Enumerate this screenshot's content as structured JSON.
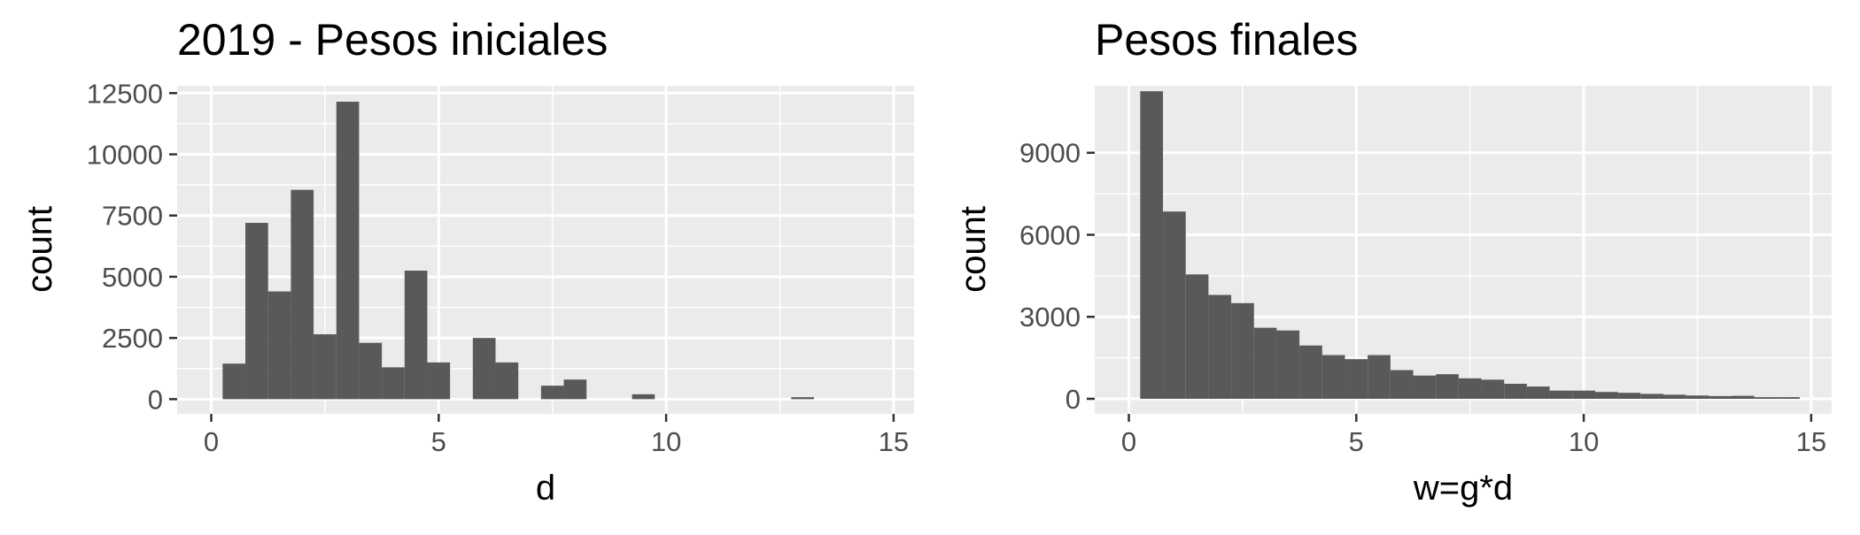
{
  "colors": {
    "panel_background": "#EBEBEB",
    "grid_major": "#FFFFFF",
    "grid_minor": "#F7F7F7",
    "bar_fill": "#595959",
    "tick_text": "#4D4D4D",
    "tick_mark": "#333333"
  },
  "chart_data": [
    {
      "type": "bar",
      "title": "2019 - Pesos iniciales",
      "xlabel": "d",
      "ylabel": "count",
      "xlim": [
        -0.75,
        15.45
      ],
      "ylim": [
        -600,
        12800
      ],
      "x_ticks": [
        0,
        5,
        10,
        15
      ],
      "y_ticks": [
        0,
        2500,
        5000,
        7500,
        10000,
        12500
      ],
      "x_tick_labels": [
        "0",
        "5",
        "10",
        "15"
      ],
      "y_tick_labels": [
        "0",
        "2500",
        "5000",
        "7500",
        "10000",
        "12500"
      ],
      "grid": true,
      "bins": [
        {
          "x0": 0.25,
          "x1": 0.75,
          "count": 1450
        },
        {
          "x0": 0.75,
          "x1": 1.25,
          "count": 7200
        },
        {
          "x0": 1.25,
          "x1": 1.75,
          "count": 4400
        },
        {
          "x0": 1.75,
          "x1": 2.25,
          "count": 8550
        },
        {
          "x0": 2.25,
          "x1": 2.75,
          "count": 2650
        },
        {
          "x0": 2.75,
          "x1": 3.25,
          "count": 12150
        },
        {
          "x0": 3.25,
          "x1": 3.75,
          "count": 2300
        },
        {
          "x0": 3.75,
          "x1": 4.25,
          "count": 1300
        },
        {
          "x0": 4.25,
          "x1": 4.75,
          "count": 5250
        },
        {
          "x0": 4.75,
          "x1": 5.25,
          "count": 1500
        },
        {
          "x0": 5.25,
          "x1": 5.75,
          "count": 0
        },
        {
          "x0": 5.75,
          "x1": 6.25,
          "count": 2500
        },
        {
          "x0": 6.25,
          "x1": 6.75,
          "count": 1500
        },
        {
          "x0": 6.75,
          "x1": 7.25,
          "count": 0
        },
        {
          "x0": 7.25,
          "x1": 7.75,
          "count": 550
        },
        {
          "x0": 7.75,
          "x1": 8.25,
          "count": 800
        },
        {
          "x0": 8.25,
          "x1": 8.75,
          "count": 0
        },
        {
          "x0": 8.75,
          "x1": 9.25,
          "count": 0
        },
        {
          "x0": 9.25,
          "x1": 9.75,
          "count": 200
        },
        {
          "x0": 9.75,
          "x1": 10.25,
          "count": 0
        },
        {
          "x0": 10.25,
          "x1": 10.75,
          "count": 0
        },
        {
          "x0": 10.75,
          "x1": 11.25,
          "count": 0
        },
        {
          "x0": 11.25,
          "x1": 11.75,
          "count": 0
        },
        {
          "x0": 11.75,
          "x1": 12.25,
          "count": 0
        },
        {
          "x0": 12.25,
          "x1": 12.75,
          "count": 0
        },
        {
          "x0": 12.75,
          "x1": 13.25,
          "count": 80
        },
        {
          "x0": 13.25,
          "x1": 13.75,
          "count": 0
        },
        {
          "x0": 13.75,
          "x1": 14.25,
          "count": 0
        },
        {
          "x0": 14.25,
          "x1": 14.75,
          "count": 0
        },
        {
          "x0": 14.75,
          "x1": 15.25,
          "count": 0
        }
      ]
    },
    {
      "type": "bar",
      "title": "Pesos finales",
      "xlabel": "w=g*d",
      "ylabel": "count",
      "xlim": [
        -0.75,
        15.45
      ],
      "ylim": [
        -550,
        11450
      ],
      "x_ticks": [
        0,
        5,
        10,
        15
      ],
      "y_ticks": [
        0,
        3000,
        6000,
        9000
      ],
      "x_tick_labels": [
        "0",
        "5",
        "10",
        "15"
      ],
      "y_tick_labels": [
        "0",
        "3000",
        "6000",
        "9000"
      ],
      "grid": true,
      "bins": [
        {
          "x0": 0.25,
          "x1": 0.75,
          "count": 11250
        },
        {
          "x0": 0.75,
          "x1": 1.25,
          "count": 6850
        },
        {
          "x0": 1.25,
          "x1": 1.75,
          "count": 4550
        },
        {
          "x0": 1.75,
          "x1": 2.25,
          "count": 3800
        },
        {
          "x0": 2.25,
          "x1": 2.75,
          "count": 3500
        },
        {
          "x0": 2.75,
          "x1": 3.25,
          "count": 2600
        },
        {
          "x0": 3.25,
          "x1": 3.75,
          "count": 2500
        },
        {
          "x0": 3.75,
          "x1": 4.25,
          "count": 1950
        },
        {
          "x0": 4.25,
          "x1": 4.75,
          "count": 1600
        },
        {
          "x0": 4.75,
          "x1": 5.25,
          "count": 1450
        },
        {
          "x0": 5.25,
          "x1": 5.75,
          "count": 1600
        },
        {
          "x0": 5.75,
          "x1": 6.25,
          "count": 1050
        },
        {
          "x0": 6.25,
          "x1": 6.75,
          "count": 850
        },
        {
          "x0": 6.75,
          "x1": 7.25,
          "count": 900
        },
        {
          "x0": 7.25,
          "x1": 7.75,
          "count": 750
        },
        {
          "x0": 7.75,
          "x1": 8.25,
          "count": 700
        },
        {
          "x0": 8.25,
          "x1": 8.75,
          "count": 550
        },
        {
          "x0": 8.75,
          "x1": 9.25,
          "count": 450
        },
        {
          "x0": 9.25,
          "x1": 9.75,
          "count": 300
        },
        {
          "x0": 9.75,
          "x1": 10.25,
          "count": 300
        },
        {
          "x0": 10.25,
          "x1": 10.75,
          "count": 250
        },
        {
          "x0": 10.75,
          "x1": 11.25,
          "count": 220
        },
        {
          "x0": 11.25,
          "x1": 11.75,
          "count": 180
        },
        {
          "x0": 11.75,
          "x1": 12.25,
          "count": 150
        },
        {
          "x0": 12.25,
          "x1": 12.75,
          "count": 120
        },
        {
          "x0": 12.75,
          "x1": 13.25,
          "count": 100
        },
        {
          "x0": 13.25,
          "x1": 13.75,
          "count": 110
        },
        {
          "x0": 13.75,
          "x1": 14.25,
          "count": 60
        },
        {
          "x0": 14.25,
          "x1": 14.75,
          "count": 60
        },
        {
          "x0": 14.75,
          "x1": 15.25,
          "count": 0
        }
      ]
    }
  ]
}
